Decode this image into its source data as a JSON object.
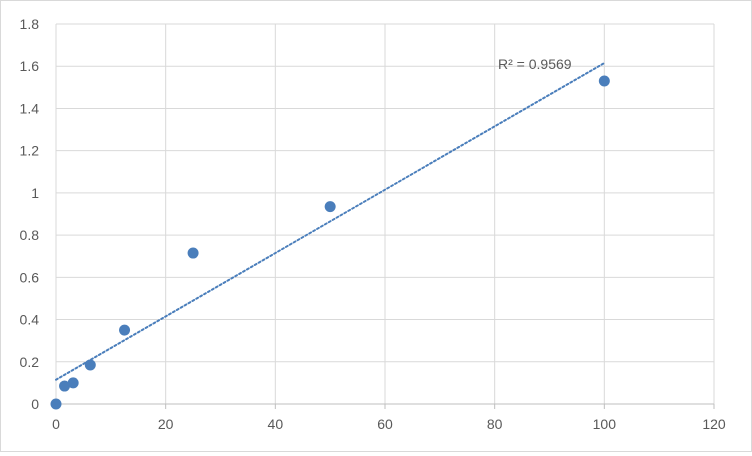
{
  "chart_data": {
    "type": "scatter",
    "title": "",
    "xlabel": "",
    "ylabel": "",
    "xlim": [
      0,
      120
    ],
    "ylim": [
      0,
      1.8
    ],
    "x_ticks": [
      0,
      20,
      40,
      60,
      80,
      100,
      120
    ],
    "y_ticks": [
      0,
      0.2,
      0.4,
      0.6,
      0.8,
      1,
      1.2,
      1.4,
      1.6,
      1.8
    ],
    "x_tick_labels": [
      "0",
      "20",
      "40",
      "60",
      "80",
      "100",
      "120"
    ],
    "y_tick_labels": [
      "0",
      "0.2",
      "0.4",
      "0.6",
      "0.8",
      "1",
      "1.2",
      "1.4",
      "1.6",
      "1.8"
    ],
    "grid": true,
    "series": [
      {
        "x": [
          0,
          1.56,
          3.13,
          6.25,
          12.5,
          25,
          50,
          100
        ],
        "y": [
          0,
          0.085,
          0.1,
          0.185,
          0.35,
          0.715,
          0.935,
          1.53
        ],
        "color": "#4a7ebb"
      }
    ],
    "trendline": {
      "type": "linear",
      "x_range": [
        0,
        100
      ],
      "y_at_start": 0.115,
      "y_at_end": 1.615,
      "color": "#4a7ebb",
      "style": "dotted",
      "label": "R² = 0.9569"
    }
  }
}
